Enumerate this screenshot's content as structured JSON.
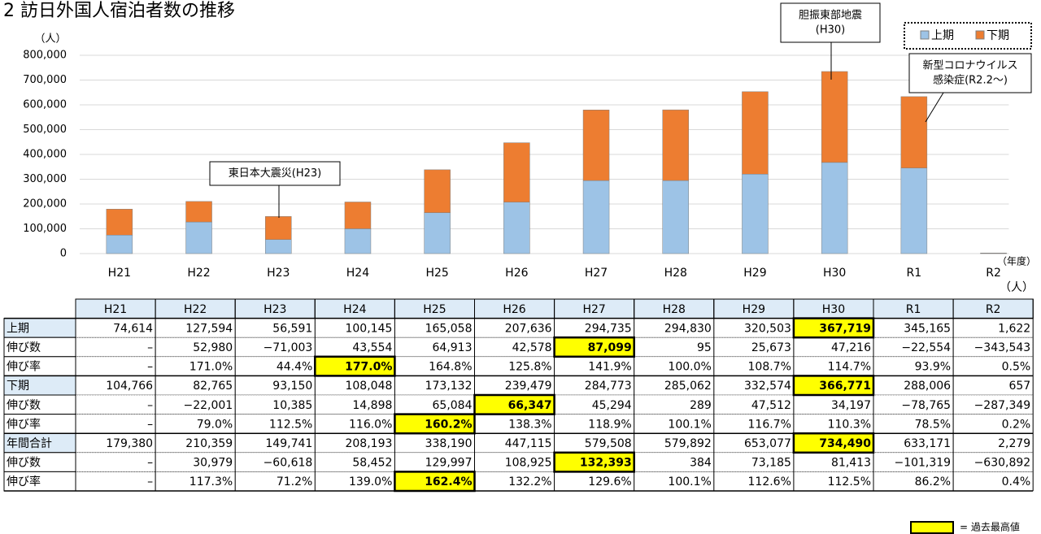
{
  "chart_data": {
    "type": "bar",
    "stacked": true,
    "title": "2 訪日外国人宿泊者数の推移",
    "y_unit": "（人）",
    "x_label": "（年度）",
    "categories": [
      "H21",
      "H22",
      "H23",
      "H24",
      "H25",
      "H26",
      "H27",
      "H28",
      "H29",
      "H30",
      "R1",
      "R2"
    ],
    "series": [
      {
        "name": "上期",
        "color": "#9dc3e6",
        "values": [
          74614,
          127594,
          56591,
          100145,
          165058,
          207636,
          294735,
          294830,
          320503,
          367719,
          345165,
          1622
        ]
      },
      {
        "name": "下期",
        "color": "#ed7d31",
        "values": [
          104766,
          82765,
          93150,
          108048,
          173132,
          239479,
          284773,
          285062,
          332574,
          366771,
          288006,
          657
        ]
      }
    ],
    "ylim": [
      0,
      800000
    ],
    "yticks": [
      0,
      {
        "value": 100000,
        "label": "100,000"
      },
      {
        "value": 200000,
        "label": "200,000"
      },
      {
        "value": 300000,
        "label": "300,000"
      },
      {
        "value": 400000,
        "label": "400,000"
      },
      {
        "value": 500000,
        "label": "500,000"
      },
      {
        "value": 600000,
        "label": "600,000"
      },
      {
        "value": 700000,
        "label": "700,000"
      },
      {
        "value": 800000,
        "label": "800,000"
      }
    ],
    "grid": true,
    "legend": "top-right",
    "annotations": [
      {
        "lines": [
          "東日本大震災(H23)"
        ]
      },
      {
        "lines": [
          "胆振東部地震",
          "(H30)"
        ]
      },
      {
        "lines": [
          "新型コロナウイルス",
          "感染症(R2.2〜)"
        ]
      }
    ]
  },
  "table": {
    "unit": "（人）",
    "highlight_color": "#ffff00",
    "highlight_legend": "= 過去最高値",
    "rows": [
      {
        "label": "上期",
        "highlight": 9,
        "cells": [
          "74,614",
          "127,594",
          "56,591",
          "100,145",
          "165,058",
          "207,636",
          "294,735",
          "294,830",
          "320,503",
          "367,719",
          "345,165",
          "1,622"
        ]
      },
      {
        "label": "伸び数",
        "highlight": 6,
        "cells": [
          "–",
          "52,980",
          "−71,003",
          "43,554",
          "64,913",
          "42,578",
          "87,099",
          "95",
          "25,673",
          "47,216",
          "−22,554",
          "−343,543"
        ]
      },
      {
        "label": "伸び率",
        "highlight": 3,
        "cells": [
          "–",
          "171.0%",
          "44.4%",
          "177.0%",
          "164.8%",
          "125.8%",
          "141.9%",
          "100.0%",
          "108.7%",
          "114.7%",
          "93.9%",
          "0.5%"
        ]
      },
      {
        "label": "下期",
        "highlight": 9,
        "cells": [
          "104,766",
          "82,765",
          "93,150",
          "108,048",
          "173,132",
          "239,479",
          "284,773",
          "285,062",
          "332,574",
          "366,771",
          "288,006",
          "657"
        ]
      },
      {
        "label": "伸び数",
        "highlight": 5,
        "cells": [
          "–",
          "−22,001",
          "10,385",
          "14,898",
          "65,084",
          "66,347",
          "45,294",
          "289",
          "47,512",
          "34,197",
          "−78,765",
          "−287,349"
        ]
      },
      {
        "label": "伸び率",
        "highlight": 4,
        "cells": [
          "–",
          "79.0%",
          "112.5%",
          "116.0%",
          "160.2%",
          "138.3%",
          "118.9%",
          "100.1%",
          "116.7%",
          "110.3%",
          "78.5%",
          "0.2%"
        ]
      },
      {
        "label": "年間合計",
        "highlight": 9,
        "cells": [
          "179,380",
          "210,359",
          "149,741",
          "208,193",
          "338,190",
          "447,115",
          "579,508",
          "579,892",
          "653,077",
          "734,490",
          "633,171",
          "2,279"
        ]
      },
      {
        "label": "伸び数",
        "highlight": 6,
        "cells": [
          "–",
          "30,979",
          "−60,618",
          "58,452",
          "129,997",
          "108,925",
          "132,393",
          "384",
          "73,185",
          "81,413",
          "−101,319",
          "−630,892"
        ]
      },
      {
        "label": "伸び率",
        "highlight": 4,
        "cells": [
          "–",
          "117.3%",
          "71.2%",
          "139.0%",
          "162.4%",
          "132.2%",
          "129.6%",
          "100.1%",
          "112.6%",
          "112.5%",
          "86.2%",
          "0.4%"
        ]
      }
    ]
  }
}
